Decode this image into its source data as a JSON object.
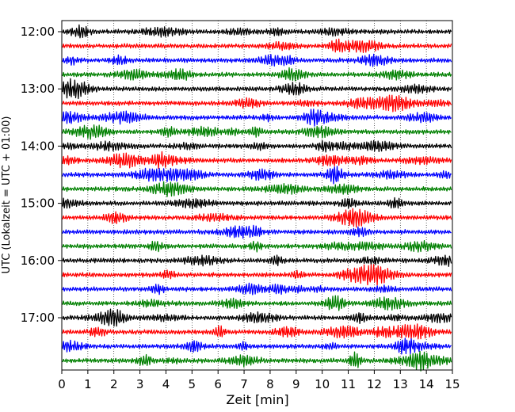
{
  "chart_data": {
    "type": "line",
    "xlabel": "Zeit  [min]",
    "ylabel": "UTC (Lokalzeit = UTC + 01:00)",
    "xlim": [
      0,
      15
    ],
    "xticks": [
      "0",
      "1",
      "2",
      "3",
      "4",
      "5",
      "6",
      "7",
      "8",
      "9",
      "10",
      "11",
      "12",
      "13",
      "14",
      "15"
    ],
    "yticks": [
      "12:00",
      "13:00",
      "14:00",
      "15:00",
      "16:00",
      "17:00"
    ],
    "grid": "vertical dotted",
    "trace_interval_min": 15,
    "trace_colors": [
      "#000000",
      "#ff0000",
      "#0000ff",
      "#008000"
    ],
    "traces": [
      {
        "start": "12:00",
        "color": "#000000"
      },
      {
        "start": "12:15",
        "color": "#ff0000"
      },
      {
        "start": "12:30",
        "color": "#0000ff"
      },
      {
        "start": "12:45",
        "color": "#008000"
      },
      {
        "start": "13:00",
        "color": "#000000"
      },
      {
        "start": "13:15",
        "color": "#ff0000"
      },
      {
        "start": "13:30",
        "color": "#0000ff"
      },
      {
        "start": "13:45",
        "color": "#008000"
      },
      {
        "start": "14:00",
        "color": "#000000"
      },
      {
        "start": "14:15",
        "color": "#ff0000"
      },
      {
        "start": "14:30",
        "color": "#0000ff"
      },
      {
        "start": "14:45",
        "color": "#008000"
      },
      {
        "start": "15:00",
        "color": "#000000"
      },
      {
        "start": "15:15",
        "color": "#ff0000"
      },
      {
        "start": "15:30",
        "color": "#0000ff"
      },
      {
        "start": "15:45",
        "color": "#008000"
      },
      {
        "start": "16:00",
        "color": "#000000"
      },
      {
        "start": "16:15",
        "color": "#ff0000"
      },
      {
        "start": "16:30",
        "color": "#0000ff"
      },
      {
        "start": "16:45",
        "color": "#008000"
      },
      {
        "start": "17:00",
        "color": "#000000"
      },
      {
        "start": "17:15",
        "color": "#ff0000"
      },
      {
        "start": "17:30",
        "color": "#0000ff"
      },
      {
        "start": "17:45",
        "color": "#008000"
      }
    ]
  }
}
